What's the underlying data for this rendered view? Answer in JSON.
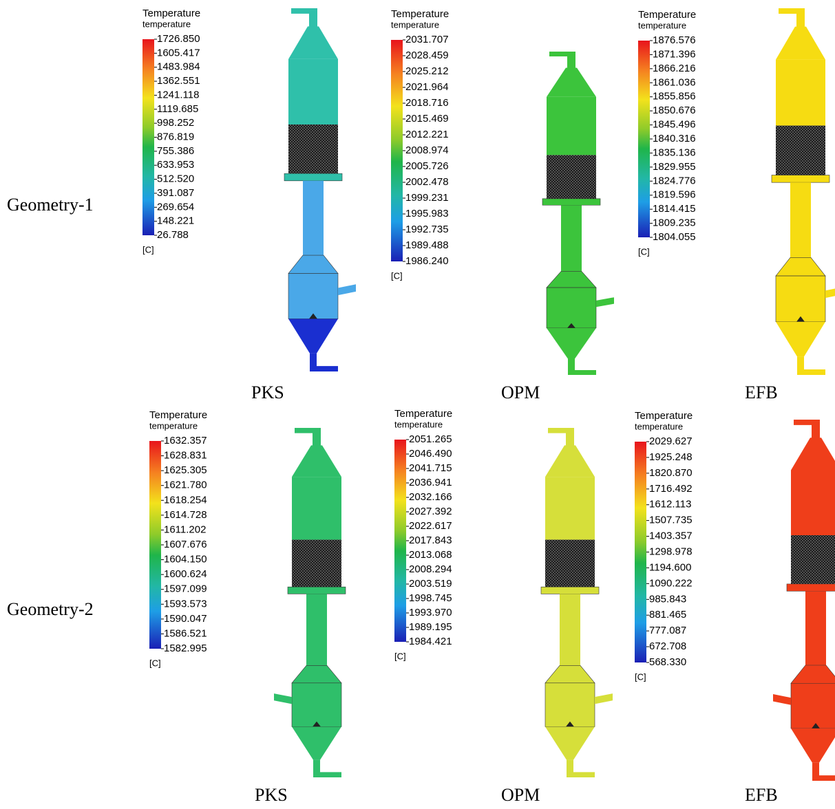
{
  "rows": [
    {
      "label": "Geometry-1",
      "panels": [
        {
          "legend": {
            "title": "Temperature",
            "subtitle": "temperature",
            "unit": "[C]",
            "ticks": [
              "1726.850",
              "1605.417",
              "1483.984",
              "1362.551",
              "1241.118",
              "1119.685",
              "998.252",
              "876.819",
              "755.386",
              "633.953",
              "512.520",
              "391.087",
              "269.654",
              "148.221",
              "26.788"
            ]
          },
          "caption": "PKS"
        },
        {
          "legend": {
            "title": "Temperature",
            "subtitle": "temperature",
            "unit": "[C]",
            "ticks": [
              "2031.707",
              "2028.459",
              "2025.212",
              "2021.964",
              "2018.716",
              "2015.469",
              "2012.221",
              "2008.974",
              "2005.726",
              "2002.478",
              "1999.231",
              "1995.983",
              "1992.735",
              "1989.488",
              "1986.240"
            ]
          },
          "caption": "OPM"
        },
        {
          "legend": {
            "title": "Temperature",
            "subtitle": "temperature",
            "unit": "[C]",
            "ticks": [
              "1876.576",
              "1871.396",
              "1866.216",
              "1861.036",
              "1855.856",
              "1850.676",
              "1845.496",
              "1840.316",
              "1835.136",
              "1829.955",
              "1824.776",
              "1819.596",
              "1814.415",
              "1809.235",
              "1804.055"
            ]
          },
          "caption": "EFB"
        }
      ]
    },
    {
      "label": "Geometry-2",
      "panels": [
        {
          "legend": {
            "title": "Temperature",
            "subtitle": "temperature",
            "unit": "[C]",
            "ticks": [
              "1632.357",
              "1628.831",
              "1625.305",
              "1621.780",
              "1618.254",
              "1614.728",
              "1611.202",
              "1607.676",
              "1604.150",
              "1600.624",
              "1597.099",
              "1593.573",
              "1590.047",
              "1586.521",
              "1582.995"
            ]
          },
          "caption": "PKS"
        },
        {
          "legend": {
            "title": "Temperature",
            "subtitle": "temperature",
            "unit": "[C]",
            "ticks": [
              "2051.265",
              "2046.490",
              "2041.715",
              "2036.941",
              "2032.166",
              "2027.392",
              "2022.617",
              "2017.843",
              "2013.068",
              "2008.294",
              "2003.519",
              "1998.745",
              "1993.970",
              "1989.195",
              "1984.421"
            ]
          },
          "caption": "OPM"
        },
        {
          "legend": {
            "title": "Temperature",
            "subtitle": "temperature",
            "unit": "[C]",
            "ticks": [
              "2029.627",
              "1925.248",
              "1820.870",
              "1716.492",
              "1612.113",
              "1507.735",
              "1403.357",
              "1298.978",
              "1194.600",
              "1090.222",
              "985.843",
              "881.465",
              "777.087",
              "672.708",
              "568.330"
            ]
          },
          "caption": "EFB"
        }
      ]
    }
  ]
}
